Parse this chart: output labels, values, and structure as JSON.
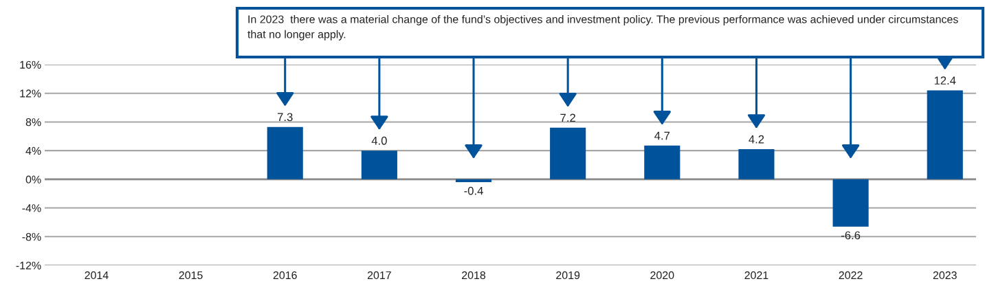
{
  "chart_data": {
    "type": "bar",
    "categories": [
      "2014",
      "2015",
      "2016",
      "2017",
      "2018",
      "2019",
      "2020",
      "2021",
      "2022",
      "2023"
    ],
    "values": [
      null,
      null,
      7.3,
      4.0,
      -0.4,
      7.2,
      4.7,
      4.2,
      -6.6,
      12.4
    ],
    "value_labels": [
      null,
      null,
      "7.3",
      "4.0",
      "-0.4",
      "7.2",
      "4.7",
      "4.2",
      "-6.6",
      "12.4"
    ],
    "color": "#00529b",
    "ylim": [
      -12,
      16
    ],
    "yticks": [
      {
        "value": -12,
        "label": "-12%"
      },
      {
        "value": -8,
        "label": "-8%"
      },
      {
        "value": -4,
        "label": "-4%"
      },
      {
        "value": 0,
        "label": "0%"
      },
      {
        "value": 4,
        "label": "4%"
      },
      {
        "value": 8,
        "label": "8%"
      },
      {
        "value": 12,
        "label": "12%"
      },
      {
        "value": 16,
        "label": "16%"
      }
    ],
    "grid": "y",
    "annotations": [
      "In 2023  there was a material change of the fund’s objectives and investment policy. The previous performance was achieved under circumstances that no longer apply."
    ]
  }
}
